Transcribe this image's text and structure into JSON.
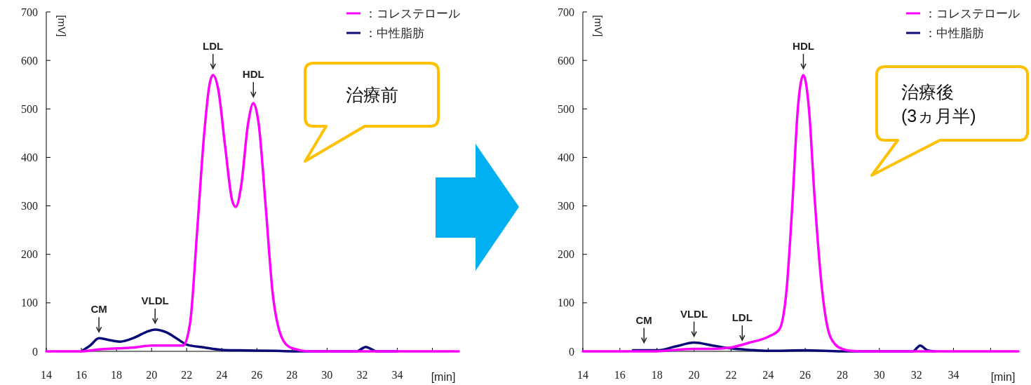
{
  "chart_data": [
    {
      "type": "line",
      "xlabel": "[min]",
      "ylabel": "[mV]",
      "xlim": [
        14,
        37.5
      ],
      "xticks": [
        14,
        16,
        18,
        20,
        22,
        24,
        26,
        28,
        30,
        32,
        34,
        {
          "value": 36,
          "label": null
        }
      ],
      "ylim": [
        0,
        700
      ],
      "yticks": [
        0,
        100,
        200,
        300,
        400,
        500,
        600,
        700
      ],
      "legend": "top right",
      "grid": false,
      "series": [
        {
          "name": "：コレステロール",
          "color": "#ff00ff",
          "x": [
            14,
            16,
            17,
            18,
            19,
            20,
            21,
            21.8,
            22.2,
            22.6,
            23,
            23.3,
            23.5,
            23.8,
            24.2,
            24.6,
            24.8,
            25.1,
            25.5,
            25.8,
            26.1,
            26.5,
            26.9,
            27.3,
            27.8,
            28.5,
            29,
            37.5
          ],
          "values": [
            0,
            0,
            4,
            6,
            8,
            12,
            12,
            12,
            60,
            250,
            450,
            550,
            570,
            540,
            420,
            310,
            298,
            340,
            470,
            512,
            470,
            300,
            120,
            40,
            10,
            2,
            0,
            0
          ]
        },
        {
          "name": "：中性脂肪",
          "color": "#0a0a78",
          "x": [
            16,
            16.5,
            17,
            17.5,
            18.2,
            19,
            19.7,
            20.2,
            20.8,
            21.5,
            22,
            23,
            24,
            25,
            27,
            28,
            31.7,
            32,
            32.2,
            32.5,
            32.8,
            34
          ],
          "values": [
            0,
            12,
            27,
            24,
            20,
            28,
            40,
            45,
            40,
            25,
            14,
            8,
            3,
            2,
            1,
            0,
            0,
            6,
            9,
            5,
            0,
            0
          ]
        }
      ],
      "annotations": [
        {
          "text": "CM",
          "x": 17,
          "y": 27
        },
        {
          "text": "VLDL",
          "x": 20.2,
          "y": 45
        },
        {
          "text": "LDL",
          "x": 23.5,
          "y": 570
        },
        {
          "text": "HDL",
          "x": 25.8,
          "y": 512
        },
        "治療前"
      ]
    },
    {
      "type": "line",
      "xlabel": "[min]",
      "ylabel": "[mV]",
      "xlim": [
        14,
        37.5
      ],
      "xticks": [
        14,
        16,
        18,
        20,
        22,
        24,
        26,
        28,
        30,
        32,
        34,
        {
          "value": 36,
          "label": null
        }
      ],
      "ylim": [
        0,
        700
      ],
      "yticks": [
        0,
        100,
        200,
        300,
        400,
        500,
        600,
        700
      ],
      "legend": "top right",
      "grid": false,
      "series": [
        {
          "name": "：コレステロール",
          "color": "#ff00ff",
          "x": [
            14,
            18,
            19,
            20,
            21,
            22,
            23,
            24,
            24.6,
            25,
            25.3,
            25.6,
            25.9,
            26.2,
            26.5,
            26.9,
            27.2,
            27.6,
            28,
            28.5,
            29,
            37.5
          ],
          "values": [
            0,
            0,
            3,
            5,
            5,
            8,
            18,
            30,
            45,
            130,
            300,
            500,
            570,
            500,
            320,
            130,
            50,
            15,
            5,
            1,
            0,
            0
          ]
        },
        {
          "name": "：中性脂肪",
          "color": "#0a0a78",
          "x": [
            16.7,
            18,
            19,
            20,
            21,
            22,
            23,
            24,
            26,
            28,
            29.5,
            31.8,
            32.2,
            32.6,
            33
          ],
          "values": [
            2,
            2,
            10,
            18,
            12,
            6,
            3,
            1,
            2,
            0,
            0,
            0,
            12,
            2,
            0
          ]
        }
      ],
      "annotations": [
        {
          "text": "CM",
          "x": 17.3,
          "y": 5
        },
        {
          "text": "VLDL",
          "x": 20,
          "y": 18
        },
        {
          "text": "LDL",
          "x": 22.6,
          "y": 10
        },
        {
          "text": "HDL",
          "x": 25.9,
          "y": 570
        },
        "治療後\n(3ヵ月半)"
      ]
    }
  ]
}
